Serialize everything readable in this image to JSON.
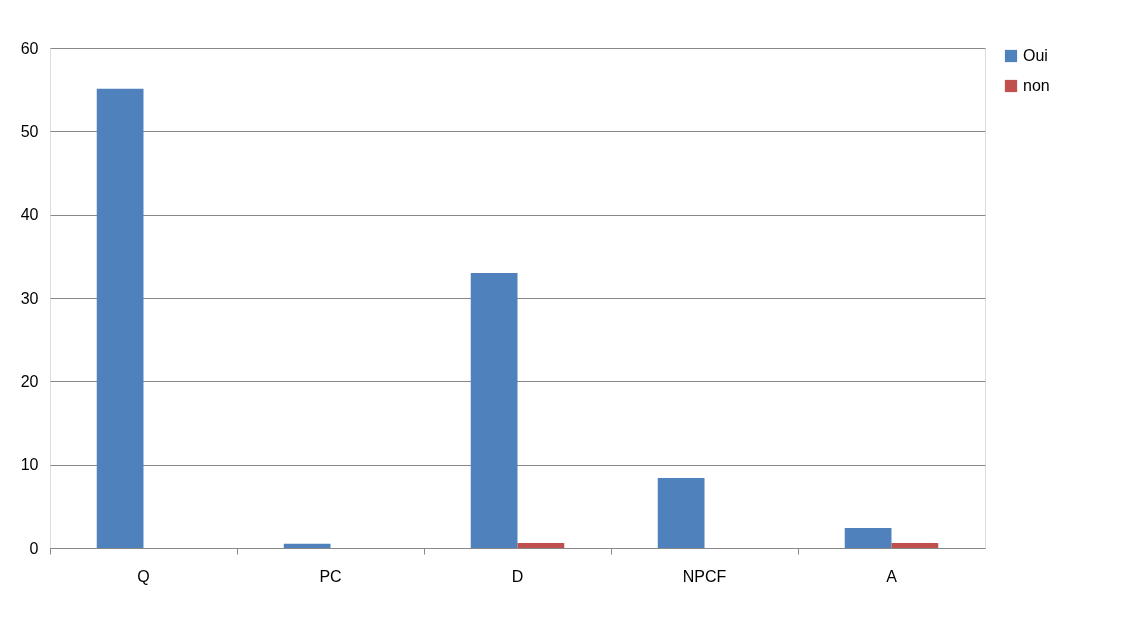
{
  "chart_data": {
    "type": "bar",
    "categories": [
      "Q",
      "PC",
      "D",
      "NPCF",
      "A"
    ],
    "series": [
      {
        "name": "Oui",
        "color": "#4f81bd",
        "values": [
          55.1,
          0.5,
          33.0,
          8.4,
          2.4
        ]
      },
      {
        "name": "non",
        "color": "#c0504d",
        "values": [
          0,
          0,
          0.6,
          0,
          0.6
        ]
      }
    ],
    "ylim": [
      0,
      60
    ],
    "yticks": [
      0,
      10,
      20,
      30,
      40,
      50,
      60
    ],
    "grid": "y",
    "legend": "right"
  }
}
